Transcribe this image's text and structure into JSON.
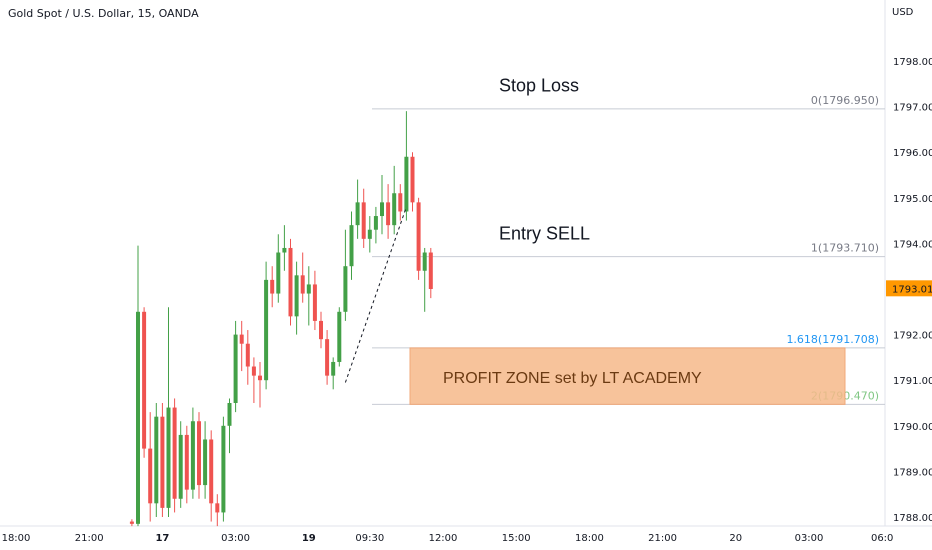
{
  "symbol_header": "Gold Spot / U.S. Dollar, 15, OANDA",
  "currency": "USD",
  "colors": {
    "bull": "#26a69a",
    "bull_fill": "#43a047",
    "bear": "#ef5350",
    "price_tag": "#ff9800",
    "zone_fill": "#f6b98a",
    "fib_level_color": "#2196f3"
  },
  "chart_data": {
    "type": "candlestick",
    "instrument": "Gold Spot / U.S. Dollar",
    "timeframe": "15",
    "source": "OANDA",
    "ylim": [
      1787.8,
      1798.3
    ],
    "y_ticks": [
      "1788.000",
      "1789.000",
      "1790.000",
      "1791.000",
      "1792.000",
      "1793.000",
      "1794.000",
      "1795.000",
      "1796.000",
      "1797.000",
      "1798.000"
    ],
    "x_ticks": [
      {
        "label": "18:00",
        "slot": 0
      },
      {
        "label": "21:00",
        "slot": 12
      },
      {
        "label": "17",
        "slot": 24,
        "bold": true
      },
      {
        "label": "03:00",
        "slot": 36
      },
      {
        "label": "19",
        "slot": 48,
        "bold": true
      },
      {
        "label": "09:30",
        "slot": 58
      },
      {
        "label": "12:00",
        "slot": 70
      },
      {
        "label": "15:00",
        "slot": 82
      },
      {
        "label": "18:00",
        "slot": 94
      },
      {
        "label": "21:00",
        "slot": 106
      },
      {
        "label": "20",
        "slot": 118
      },
      {
        "label": "03:00",
        "slot": 130
      },
      {
        "label": "06:0",
        "slot": 142
      }
    ],
    "candles": [
      {
        "o": 1787.9,
        "h": 1787.95,
        "l": 1787.8,
        "c": 1787.85
      },
      {
        "o": 1787.85,
        "h": 1793.95,
        "l": 1787.8,
        "c": 1792.5
      },
      {
        "o": 1792.5,
        "h": 1792.6,
        "l": 1789.3,
        "c": 1789.5
      },
      {
        "o": 1789.5,
        "h": 1790.3,
        "l": 1787.9,
        "c": 1788.3
      },
      {
        "o": 1788.3,
        "h": 1790.5,
        "l": 1788.0,
        "c": 1790.2
      },
      {
        "o": 1790.2,
        "h": 1790.5,
        "l": 1788.0,
        "c": 1788.2
      },
      {
        "o": 1788.2,
        "h": 1792.6,
        "l": 1788.0,
        "c": 1790.4
      },
      {
        "o": 1790.4,
        "h": 1790.6,
        "l": 1788.1,
        "c": 1788.4
      },
      {
        "o": 1788.4,
        "h": 1790.1,
        "l": 1788.2,
        "c": 1789.8
      },
      {
        "o": 1789.8,
        "h": 1790.0,
        "l": 1788.3,
        "c": 1788.6
      },
      {
        "o": 1788.6,
        "h": 1790.4,
        "l": 1788.4,
        "c": 1790.1
      },
      {
        "o": 1790.1,
        "h": 1790.3,
        "l": 1788.4,
        "c": 1788.7
      },
      {
        "o": 1788.7,
        "h": 1790.1,
        "l": 1788.4,
        "c": 1789.7
      },
      {
        "o": 1789.7,
        "h": 1789.9,
        "l": 1787.9,
        "c": 1788.3
      },
      {
        "o": 1788.3,
        "h": 1788.5,
        "l": 1787.8,
        "c": 1788.1
      },
      {
        "o": 1788.1,
        "h": 1790.2,
        "l": 1787.9,
        "c": 1790.0
      },
      {
        "o": 1790.0,
        "h": 1790.6,
        "l": 1789.4,
        "c": 1790.5
      },
      {
        "o": 1790.5,
        "h": 1792.3,
        "l": 1790.3,
        "c": 1792.0
      },
      {
        "o": 1792.0,
        "h": 1792.3,
        "l": 1791.2,
        "c": 1791.8
      },
      {
        "o": 1791.8,
        "h": 1792.1,
        "l": 1790.9,
        "c": 1791.3
      },
      {
        "o": 1791.3,
        "h": 1791.5,
        "l": 1790.5,
        "c": 1791.1
      },
      {
        "o": 1791.1,
        "h": 1791.4,
        "l": 1790.4,
        "c": 1791.0
      },
      {
        "o": 1791.0,
        "h": 1793.6,
        "l": 1790.8,
        "c": 1793.2
      },
      {
        "o": 1793.2,
        "h": 1793.5,
        "l": 1792.6,
        "c": 1792.9
      },
      {
        "o": 1792.9,
        "h": 1794.2,
        "l": 1792.7,
        "c": 1793.8
      },
      {
        "o": 1793.8,
        "h": 1794.4,
        "l": 1793.4,
        "c": 1793.9
      },
      {
        "o": 1793.9,
        "h": 1794.1,
        "l": 1792.2,
        "c": 1792.4
      },
      {
        "o": 1792.4,
        "h": 1793.6,
        "l": 1792.0,
        "c": 1793.3
      },
      {
        "o": 1793.3,
        "h": 1793.8,
        "l": 1792.7,
        "c": 1792.9
      },
      {
        "o": 1792.9,
        "h": 1793.5,
        "l": 1792.2,
        "c": 1793.1
      },
      {
        "o": 1793.1,
        "h": 1793.4,
        "l": 1792.1,
        "c": 1792.3
      },
      {
        "o": 1792.3,
        "h": 1792.5,
        "l": 1791.7,
        "c": 1791.9
      },
      {
        "o": 1791.9,
        "h": 1792.1,
        "l": 1790.9,
        "c": 1791.1
      },
      {
        "o": 1791.1,
        "h": 1791.5,
        "l": 1790.8,
        "c": 1791.4
      },
      {
        "o": 1791.4,
        "h": 1792.6,
        "l": 1791.3,
        "c": 1792.5
      },
      {
        "o": 1792.5,
        "h": 1794.3,
        "l": 1792.3,
        "c": 1793.5
      },
      {
        "o": 1793.5,
        "h": 1794.7,
        "l": 1793.2,
        "c": 1794.4
      },
      {
        "o": 1794.4,
        "h": 1795.4,
        "l": 1794.1,
        "c": 1794.9
      },
      {
        "o": 1794.9,
        "h": 1795.2,
        "l": 1793.9,
        "c": 1794.1
      },
      {
        "o": 1794.1,
        "h": 1794.6,
        "l": 1793.8,
        "c": 1794.3
      },
      {
        "o": 1794.3,
        "h": 1794.8,
        "l": 1794.0,
        "c": 1794.6
      },
      {
        "o": 1794.6,
        "h": 1795.5,
        "l": 1794.2,
        "c": 1794.9
      },
      {
        "o": 1794.9,
        "h": 1795.3,
        "l": 1794.1,
        "c": 1794.4
      },
      {
        "o": 1794.4,
        "h": 1795.7,
        "l": 1794.2,
        "c": 1795.1
      },
      {
        "o": 1795.1,
        "h": 1795.3,
        "l": 1794.5,
        "c": 1794.7
      },
      {
        "o": 1794.7,
        "h": 1796.9,
        "l": 1794.5,
        "c": 1795.9
      },
      {
        "o": 1795.9,
        "h": 1796.0,
        "l": 1794.7,
        "c": 1794.9
      },
      {
        "o": 1794.9,
        "h": 1795.0,
        "l": 1793.2,
        "c": 1793.4
      },
      {
        "o": 1793.4,
        "h": 1793.9,
        "l": 1792.5,
        "c": 1793.8
      },
      {
        "o": 1793.8,
        "h": 1793.9,
        "l": 1792.8,
        "c": 1793.0
      }
    ],
    "current_price": "1793.015",
    "fibonacci": [
      {
        "level": "0",
        "price": "(1796.950)",
        "value": 1796.95,
        "label": "0(1796.950)",
        "color": "#787b86"
      },
      {
        "level": "1",
        "price": "(1793.710)",
        "value": 1793.71,
        "label": "1(1793.710)",
        "color": "#787b86"
      },
      {
        "level": "1.618",
        "price": "(1791.708)",
        "value": 1791.708,
        "label": "1.618(1791.708)",
        "color": "#2196f3"
      },
      {
        "level": "2",
        "price": "(1790.470)",
        "value": 1790.47,
        "label": "2(1790.470)",
        "color": "#81c784"
      }
    ],
    "trend_line": {
      "from": {
        "candle": 35,
        "price": 1790.95
      },
      "to": {
        "candle": 45,
        "price": 1794.8
      }
    },
    "annotations": [
      {
        "text": "Stop Loss",
        "price": 1797.2
      },
      {
        "text": "Entry SELL",
        "price": 1793.95
      }
    ],
    "zone": {
      "label": "PROFIT ZONE set by LT ACADEMY",
      "top": 1791.708,
      "bottom": 1790.47
    }
  }
}
